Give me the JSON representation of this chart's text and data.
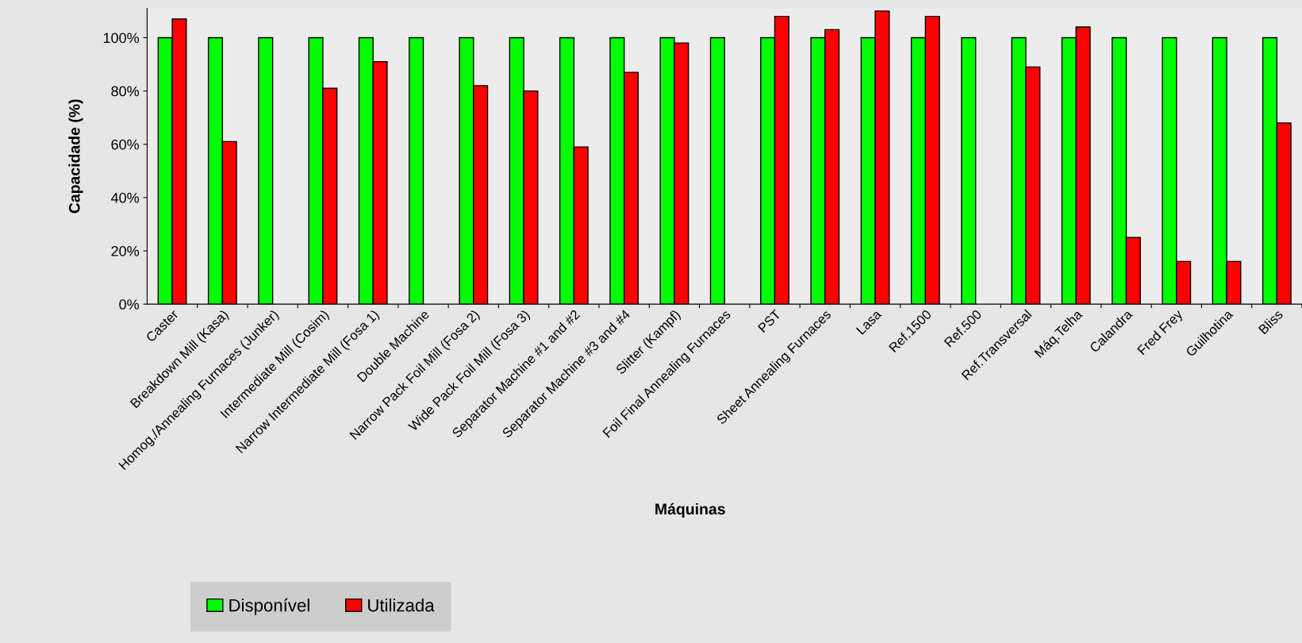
{
  "chart_data": {
    "type": "bar",
    "xlabel": "Máquinas",
    "ylabel": "Capacidade (%)",
    "categories": [
      "Caster",
      "Breakdown Mill (Kasa)",
      "Homog./Annealing Furnaces (Junker)",
      "Intermediate Mill (Cosim)",
      "Narrow Intermediate Mill (Fosa 1)",
      "Double Machine",
      "Narrow Pack Foil Mill (Fosa 2)",
      "Wide Pack Foil Mill (Fosa 3)",
      "Separator Machine #1 and #2",
      "Separator Machine #3 and #4",
      "Slitter (Kampf)",
      "Foil Final Annealing Furnaces",
      "PST",
      "Sheet Annealing Furnaces",
      "Lasa",
      "Ref.1500",
      "Ref.500",
      "Ref.Transversal",
      "Máq.Telha",
      "Calandra",
      "Fred Frey",
      "Guilhotina",
      "Bliss"
    ],
    "series": [
      {
        "name": "Disponível",
        "color": "#00ff00",
        "values": [
          100,
          100,
          100,
          100,
          100,
          100,
          100,
          100,
          100,
          100,
          100,
          100,
          100,
          100,
          100,
          100,
          100,
          100,
          100,
          100,
          100,
          100,
          100
        ]
      },
      {
        "name": "Utilizada",
        "color": "#ff0000",
        "values": [
          107,
          61,
          null,
          81,
          91,
          null,
          82,
          80,
          59,
          87,
          98,
          null,
          108,
          103,
          110,
          108,
          null,
          89,
          104,
          25,
          16,
          16,
          68
        ]
      }
    ],
    "ylim": [
      0,
      111
    ],
    "yticks": [
      {
        "value": 0,
        "label": "0%"
      },
      {
        "value": 20,
        "label": "20%"
      },
      {
        "value": 40,
        "label": "40%"
      },
      {
        "value": 60,
        "label": "60%"
      },
      {
        "value": 80,
        "label": "80%"
      },
      {
        "value": 100,
        "label": "100%"
      }
    ],
    "grid": false,
    "legend": "bottom left"
  }
}
